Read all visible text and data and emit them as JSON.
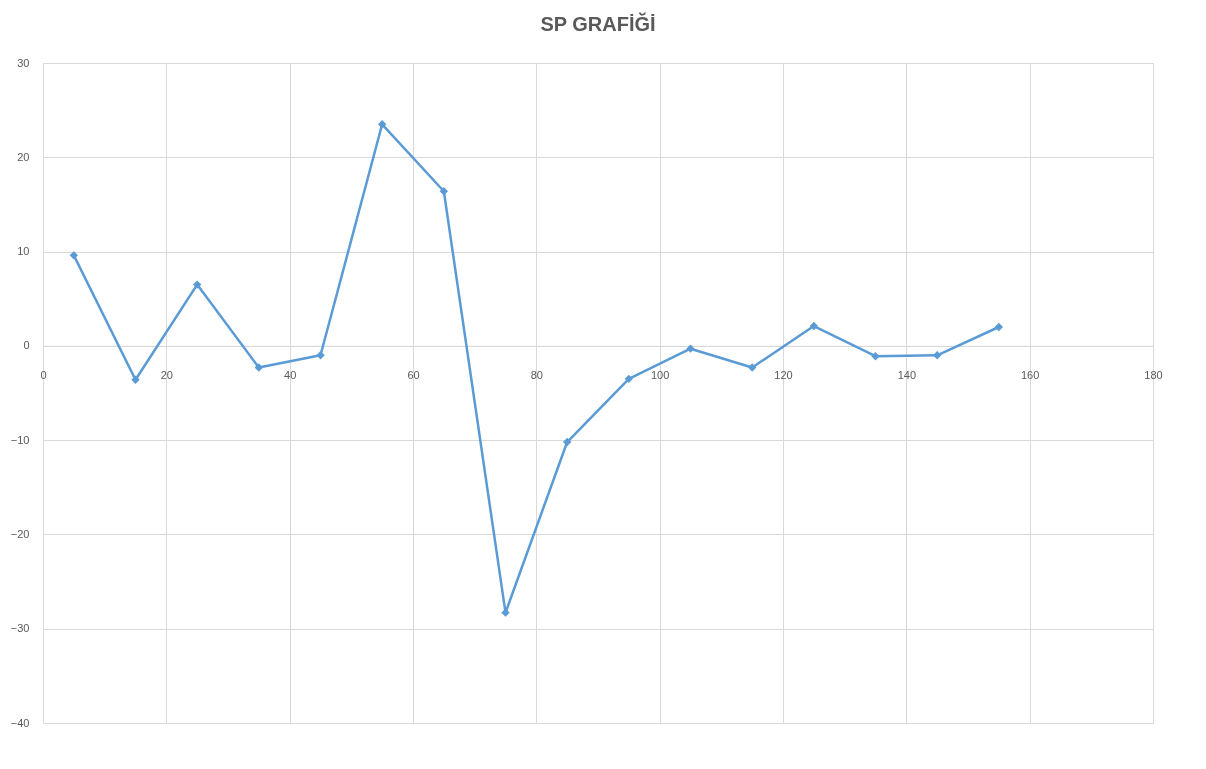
{
  "chart_data": {
    "type": "line",
    "title": "SP GRAFİĞİ",
    "x": [
      5,
      15,
      25,
      35,
      45,
      55,
      65,
      75,
      85,
      95,
      105,
      115,
      125,
      135,
      145,
      155
    ],
    "series": [
      {
        "color": "#5b9bd5",
        "values": [
          9.6,
          -3.6,
          6.5,
          -2.3,
          -1.0,
          23.5,
          16.4,
          -28.3,
          -10.2,
          -3.5,
          -0.3,
          -2.3,
          2.1,
          -1.1,
          -1.0,
          2.0
        ]
      }
    ],
    "xlim": [
      0,
      180
    ],
    "xticks": [
      0,
      20,
      40,
      60,
      80,
      100,
      120,
      140,
      160,
      180
    ],
    "ylim": [
      -40,
      30
    ],
    "yticks": [
      -40,
      -30,
      -20,
      -10,
      0,
      10,
      20,
      30
    ],
    "grid": true,
    "marker": "diamond",
    "line_style": "solid"
  }
}
